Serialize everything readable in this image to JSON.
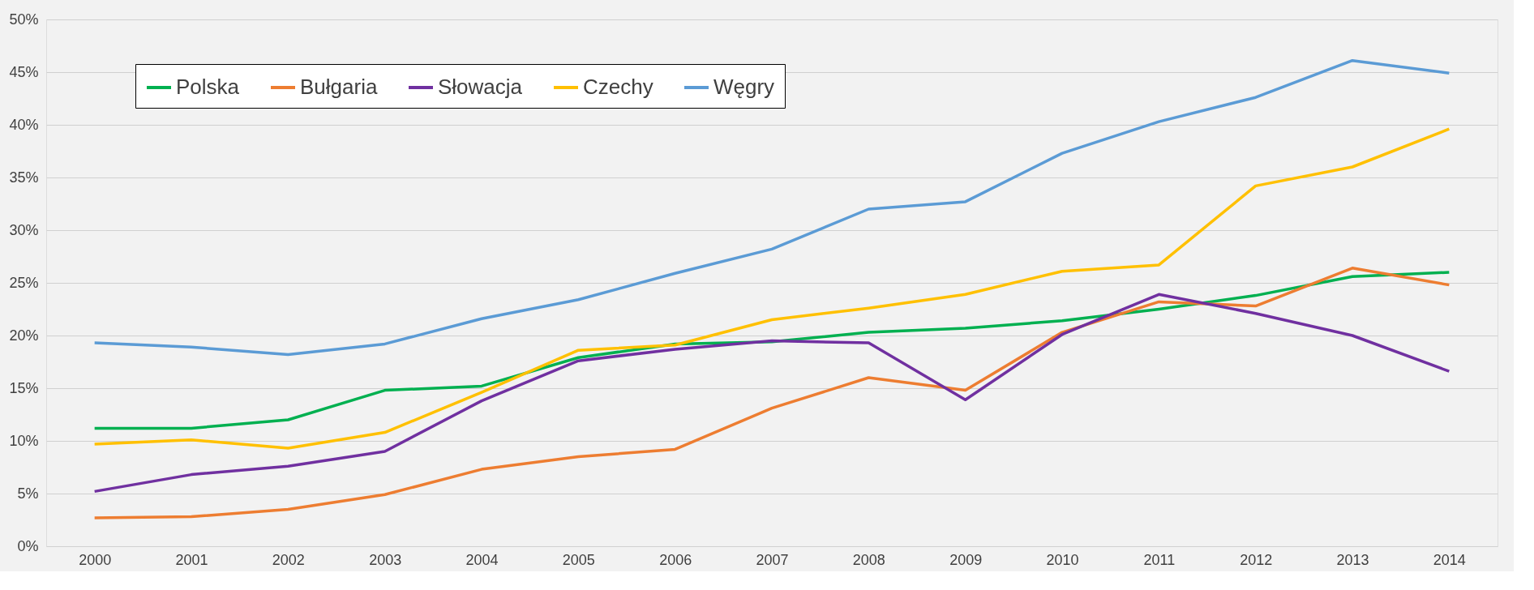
{
  "chart_data": {
    "type": "line",
    "categories": [
      "2000",
      "2001",
      "2002",
      "2003",
      "2004",
      "2005",
      "2006",
      "2007",
      "2008",
      "2009",
      "2010",
      "2011",
      "2012",
      "2013",
      "2014"
    ],
    "series": [
      {
        "name": "Polska",
        "color": "#00b050",
        "values": [
          11.2,
          11.2,
          12.0,
          14.8,
          15.2,
          17.9,
          19.2,
          19.4,
          20.3,
          20.7,
          21.4,
          22.5,
          23.8,
          25.6,
          26.0
        ]
      },
      {
        "name": "Bułgaria",
        "color": "#ed7d31",
        "values": [
          2.7,
          2.8,
          3.5,
          4.9,
          7.3,
          8.5,
          9.2,
          13.1,
          16.0,
          14.8,
          20.3,
          23.2,
          22.8,
          26.4,
          24.8
        ]
      },
      {
        "name": "Słowacja",
        "color": "#7030a0",
        "values": [
          5.2,
          6.8,
          7.6,
          9.0,
          13.8,
          17.6,
          18.7,
          19.5,
          19.3,
          13.9,
          20.1,
          23.9,
          22.1,
          20.0,
          16.6
        ]
      },
      {
        "name": "Czechy",
        "color": "#ffc000",
        "values": [
          9.7,
          10.1,
          9.3,
          10.8,
          14.6,
          18.6,
          19.1,
          21.5,
          22.6,
          23.9,
          26.1,
          26.7,
          34.2,
          36.0,
          39.6
        ]
      },
      {
        "name": "Węgry",
        "color": "#5b9bd5",
        "values": [
          19.3,
          18.9,
          18.2,
          19.2,
          21.6,
          23.4,
          25.9,
          28.2,
          32.0,
          32.7,
          37.3,
          40.3,
          42.6,
          46.1,
          44.9
        ]
      }
    ],
    "ylim": [
      0,
      50
    ],
    "yticks": [
      {
        "value": 0,
        "label": "0%"
      },
      {
        "value": 5,
        "label": "5%"
      },
      {
        "value": 10,
        "label": "10%"
      },
      {
        "value": 15,
        "label": "15%"
      },
      {
        "value": 20,
        "label": "20%"
      },
      {
        "value": 25,
        "label": "25%"
      },
      {
        "value": 30,
        "label": "30%"
      },
      {
        "value": 35,
        "label": "35%"
      },
      {
        "value": 40,
        "label": "40%"
      },
      {
        "value": 45,
        "label": "45%"
      },
      {
        "value": 50,
        "label": "50%"
      }
    ],
    "grid": "y",
    "legend": "top left",
    "marker": "none",
    "line_style": "solid"
  }
}
